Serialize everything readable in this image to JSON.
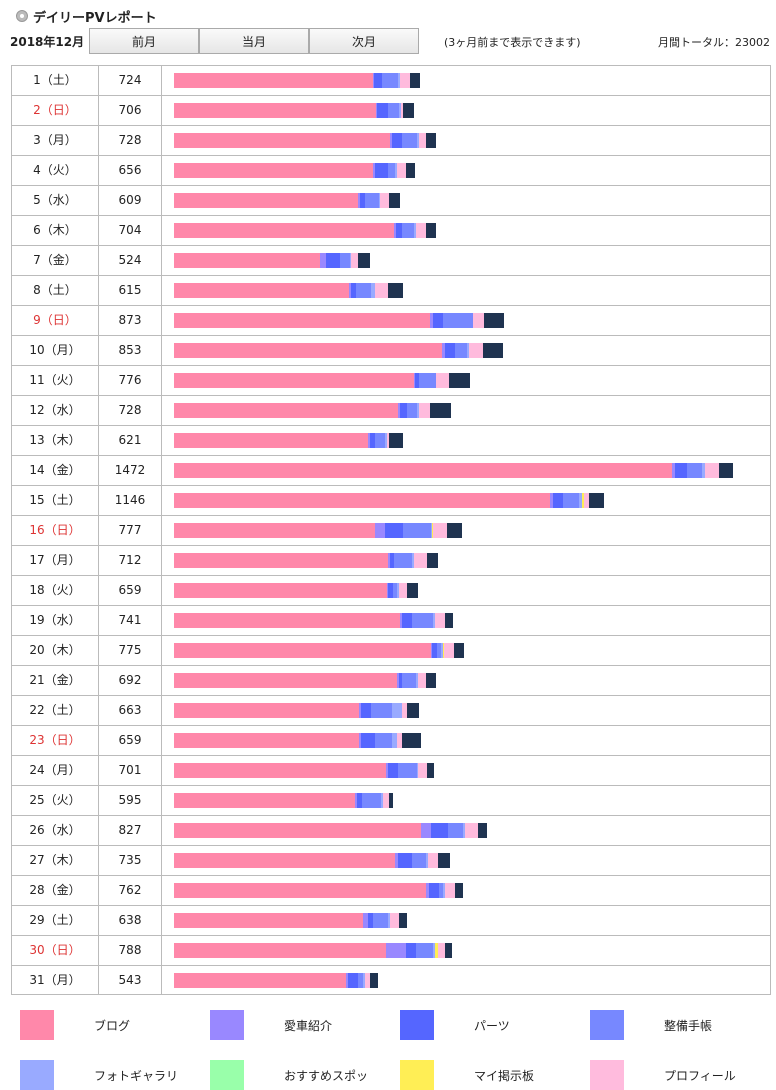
{
  "header": {
    "title": "デイリーPVレポート",
    "month": "2018年12月",
    "prev_label": "前月",
    "current_label": "当月",
    "next_label": "次月",
    "note": "(3ヶ月前まで表示できます)",
    "total": "月間トータル：23002"
  },
  "categories": [
    {
      "label": "ブログ",
      "color": "#ff88aa"
    },
    {
      "label": "愛車紹介",
      "color": "#9988ff"
    },
    {
      "label": "パーツ",
      "color": "#5566ff"
    },
    {
      "label": "整備手帳",
      "color": "#7788ff"
    },
    {
      "label": "フォトギャラリ",
      "color": "#99aaff"
    },
    {
      "label": "おすすめスポッ",
      "color": "#99ffaa"
    },
    {
      "label": "マイ掲示板",
      "color": "#ffee55"
    },
    {
      "label": "プロフィール",
      "color": "#ffbbdd"
    },
    {
      "label": "",
      "color": "#1f3350"
    }
  ],
  "chart_data": {
    "type": "bar",
    "orientation": "horizontal",
    "stacked": true,
    "series_order": [
      "ブログ",
      "愛車紹介",
      "パーツ",
      "整備手帳",
      "フォトギャラリ",
      "おすすめスポッ",
      "マイ掲示板",
      "プロフィール",
      ""
    ],
    "rows": [
      {
        "date": "1（土）",
        "weekend": false,
        "total": 724,
        "values": [
          584,
          4,
          25,
          45,
          6,
          0,
          0,
          30,
          30
        ]
      },
      {
        "date": "2（日）",
        "weekend": true,
        "total": 706,
        "values": [
          594,
          4,
          30,
          35,
          6,
          0,
          0,
          6,
          31
        ]
      },
      {
        "date": "3（月）",
        "weekend": false,
        "total": 728,
        "values": [
          635,
          5,
          30,
          45,
          5,
          0,
          0,
          20,
          31
        ]
      },
      {
        "date": "4（火）",
        "weekend": false,
        "total": 656,
        "values": [
          585,
          5,
          40,
          20,
          6,
          0,
          0,
          27,
          27
        ]
      },
      {
        "date": "5（水）",
        "weekend": false,
        "total": 609,
        "values": [
          540,
          7,
          15,
          40,
          5,
          0,
          0,
          25,
          32
        ]
      },
      {
        "date": "6（木）",
        "weekend": false,
        "total": 704,
        "values": [
          647,
          7,
          18,
          35,
          5,
          0,
          0,
          30,
          30
        ]
      },
      {
        "date": "7（金）",
        "weekend": false,
        "total": 524,
        "values": [
          429,
          18,
          40,
          30,
          5,
          0,
          0,
          20,
          35
        ]
      },
      {
        "date": "8（土）",
        "weekend": false,
        "total": 615,
        "values": [
          515,
          5,
          16,
          45,
          10,
          0,
          0,
          40,
          44
        ]
      },
      {
        "date": "9（日）",
        "weekend": true,
        "total": 873,
        "values": [
          753,
          8,
          30,
          90,
          0,
          0,
          0,
          30,
          60
        ]
      },
      {
        "date": "10（月）",
        "weekend": false,
        "total": 853,
        "values": [
          788,
          8,
          30,
          36,
          6,
          0,
          0,
          40,
          60
        ]
      },
      {
        "date": "11（火）",
        "weekend": false,
        "total": 776,
        "values": [
          705,
          5,
          10,
          50,
          0,
          0,
          0,
          40,
          60
        ]
      },
      {
        "date": "12（水）",
        "weekend": false,
        "total": 728,
        "values": [
          660,
          6,
          20,
          30,
          6,
          0,
          0,
          30,
          62
        ]
      },
      {
        "date": "13（木）",
        "weekend": false,
        "total": 621,
        "values": [
          570,
          6,
          15,
          30,
          6,
          0,
          0,
          6,
          40
        ]
      },
      {
        "date": "14（金）",
        "weekend": false,
        "total": 1472,
        "values": [
          1464,
          10,
          35,
          45,
          9,
          0,
          0,
          40,
          40
        ]
      },
      {
        "date": "15（土）",
        "weekend": false,
        "total": 1146,
        "values": [
          1105,
          10,
          30,
          45,
          10,
          0,
          5,
          15,
          45
        ]
      },
      {
        "date": "16（日）",
        "weekend": true,
        "total": 777,
        "values": [
          590,
          30,
          55,
          80,
          5,
          0,
          2,
          40,
          45
        ]
      },
      {
        "date": "17（月）",
        "weekend": false,
        "total": 712,
        "values": [
          628,
          6,
          13,
          53,
          6,
          0,
          0,
          40,
          30
        ]
      },
      {
        "date": "18（火）",
        "weekend": false,
        "total": 659,
        "values": [
          625,
          5,
          15,
          10,
          6,
          0,
          0,
          25,
          31
        ]
      },
      {
        "date": "19（水）",
        "weekend": false,
        "total": 741,
        "values": [
          665,
          6,
          30,
          60,
          6,
          0,
          0,
          30,
          25
        ]
      },
      {
        "date": "20（木）",
        "weekend": false,
        "total": 775,
        "values": [
          755,
          5,
          15,
          10,
          6,
          0,
          3,
          30,
          30
        ]
      },
      {
        "date": "21（金）",
        "weekend": false,
        "total": 692,
        "values": [
          655,
          6,
          10,
          40,
          6,
          0,
          0,
          25,
          30
        ]
      },
      {
        "date": "22（土）",
        "weekend": false,
        "total": 663,
        "values": [
          545,
          6,
          30,
          60,
          30,
          0,
          0,
          16,
          34
        ]
      },
      {
        "date": "23（日）",
        "weekend": true,
        "total": 659,
        "values": [
          545,
          6,
          40,
          50,
          15,
          0,
          0,
          15,
          55
        ]
      },
      {
        "date": "24（月）",
        "weekend": false,
        "total": 701,
        "values": [
          623,
          6,
          30,
          55,
          5,
          0,
          0,
          25,
          20
        ]
      },
      {
        "date": "25（火）",
        "weekend": false,
        "total": 595,
        "values": [
          533,
          6,
          15,
          55,
          5,
          0,
          0,
          20,
          10
        ]
      },
      {
        "date": "26（水）",
        "weekend": false,
        "total": 827,
        "values": [
          725,
          30,
          50,
          45,
          5,
          0,
          0,
          40,
          25
        ]
      },
      {
        "date": "27（木）",
        "weekend": false,
        "total": 735,
        "values": [
          650,
          10,
          40,
          40,
          8,
          0,
          0,
          30,
          35
        ]
      },
      {
        "date": "28（金）",
        "weekend": false,
        "total": 762,
        "values": [
          740,
          10,
          30,
          10,
          6,
          0,
          0,
          30,
          25
        ]
      },
      {
        "date": "29（土）",
        "weekend": false,
        "total": 638,
        "values": [
          555,
          15,
          15,
          45,
          6,
          0,
          0,
          25,
          25
        ]
      },
      {
        "date": "30（日）",
        "weekend": true,
        "total": 788,
        "values": [
          622,
          60,
          30,
          50,
          5,
          0,
          10,
          20,
          20
        ]
      },
      {
        "date": "31（月）",
        "weekend": false,
        "total": 543,
        "values": [
          505,
          6,
          30,
          15,
          5,
          0,
          0,
          15,
          25
        ]
      }
    ]
  }
}
